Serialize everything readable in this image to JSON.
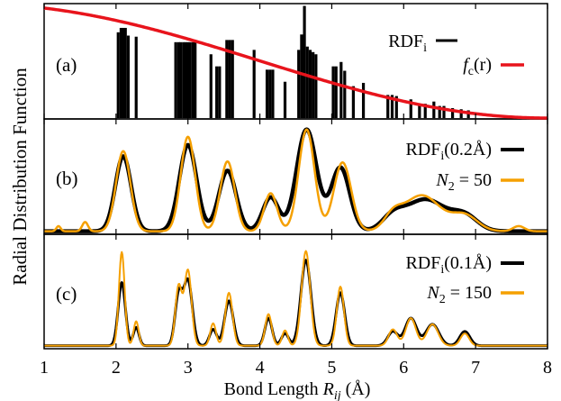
{
  "figure": {
    "ylabel": "Radial Distribution Function",
    "xlabel_main": "Bond Length ",
    "xlabel_var": "R",
    "xlabel_sub": "ij",
    "xlabel_unit": " (Å)",
    "xticks": [
      "1",
      "2",
      "3",
      "4",
      "5",
      "6",
      "7",
      "8"
    ]
  },
  "colors": {
    "black": "#000000",
    "red": "#e8141c",
    "orange": "#f5a000"
  },
  "chart_data": [
    {
      "type": "bar",
      "panel_label": "(a)",
      "xlim": [
        1,
        8
      ],
      "legend_position": "top-right",
      "legend": [
        {
          "main": "RDF",
          "sub": "i",
          "tail": "",
          "color": "#000000"
        },
        {
          "main": "f",
          "sub": "c",
          "tail": "(r)",
          "color": "#e8141c",
          "italic_main": true
        }
      ],
      "sticks": [
        [
          2.03,
          0.78
        ],
        [
          2.07,
          0.82
        ],
        [
          2.1,
          0.82
        ],
        [
          2.13,
          0.82
        ],
        [
          2.17,
          0.75
        ],
        [
          2.28,
          0.74
        ],
        [
          2.83,
          0.69
        ],
        [
          2.87,
          0.69
        ],
        [
          2.9,
          0.69
        ],
        [
          2.94,
          0.69
        ],
        [
          2.97,
          0.69
        ],
        [
          3.0,
          0.69
        ],
        [
          3.03,
          0.69
        ],
        [
          3.07,
          0.69
        ],
        [
          3.1,
          0.69
        ],
        [
          3.32,
          0.58
        ],
        [
          3.4,
          0.47
        ],
        [
          3.44,
          0.47
        ],
        [
          3.54,
          0.71
        ],
        [
          3.58,
          0.71
        ],
        [
          3.62,
          0.71
        ],
        [
          3.92,
          0.62
        ],
        [
          4.1,
          0.44
        ],
        [
          4.14,
          0.44
        ],
        [
          4.18,
          0.44
        ],
        [
          4.35,
          0.33
        ],
        [
          4.54,
          0.62
        ],
        [
          4.58,
          0.76
        ],
        [
          4.62,
          1.02
        ],
        [
          4.66,
          0.65
        ],
        [
          4.7,
          0.62
        ],
        [
          4.74,
          0.6
        ],
        [
          4.78,
          0.58
        ],
        [
          5.02,
          0.47
        ],
        [
          5.06,
          0.47
        ],
        [
          5.13,
          0.51
        ],
        [
          5.18,
          0.43
        ],
        [
          5.3,
          0.29
        ],
        [
          5.44,
          0.32
        ],
        [
          5.78,
          0.21
        ],
        [
          5.84,
          0.21
        ],
        [
          5.9,
          0.2
        ],
        [
          6.1,
          0.17
        ],
        [
          6.22,
          0.13
        ],
        [
          6.3,
          0.13
        ],
        [
          6.42,
          0.15
        ],
        [
          6.5,
          0.11
        ],
        [
          6.56,
          0.11
        ],
        [
          6.68,
          0.09
        ],
        [
          6.8,
          0.08
        ],
        [
          6.9,
          0.07
        ]
      ],
      "fc_curve": {
        "rc": 8,
        "start": 1
      }
    },
    {
      "type": "line",
      "panel_label": "(b)",
      "xlim": [
        1,
        8
      ],
      "legend_position": "top-right",
      "legend": [
        {
          "main": "RDF",
          "sub": "i",
          "tail": "(0.2Å)",
          "color": "#000000"
        },
        {
          "main": "N",
          "sub": "2",
          "tail": " = 50",
          "color": "#f5a000",
          "italic_main": true
        }
      ],
      "series": [
        {
          "name": "RDFi(0.2Å)",
          "color": "#000000",
          "width": 4.5,
          "peaks": [
            [
              2.1,
              0.73,
              0.11
            ],
            [
              3.0,
              0.84,
              0.12
            ],
            [
              3.55,
              0.59,
              0.12
            ],
            [
              4.15,
              0.33,
              0.11
            ],
            [
              4.65,
              0.99,
              0.14
            ],
            [
              5.12,
              0.62,
              0.13
            ],
            [
              5.85,
              0.12,
              0.15
            ],
            [
              6.3,
              0.31,
              0.28
            ],
            [
              6.85,
              0.14,
              0.18
            ]
          ]
        },
        {
          "name": "N2 = 50",
          "color": "#f5a000",
          "width": 2.5,
          "peaks": [
            [
              1.2,
              0.05,
              0.03
            ],
            [
              1.57,
              0.09,
              0.04
            ],
            [
              2.1,
              0.78,
              0.1
            ],
            [
              3.0,
              0.92,
              0.1
            ],
            [
              3.55,
              0.68,
              0.1
            ],
            [
              4.15,
              0.37,
              0.09
            ],
            [
              4.65,
              0.99,
              0.11
            ],
            [
              5.15,
              0.67,
              0.12
            ],
            [
              5.85,
              0.12,
              0.12
            ],
            [
              6.25,
              0.35,
              0.26
            ],
            [
              6.85,
              0.15,
              0.18
            ],
            [
              7.6,
              0.05,
              0.08
            ]
          ]
        }
      ]
    },
    {
      "type": "line",
      "panel_label": "(c)",
      "xlim": [
        1,
        8
      ],
      "legend_position": "top-right",
      "legend": [
        {
          "main": "RDF",
          "sub": "i",
          "tail": "(0.1Å)",
          "color": "#000000"
        },
        {
          "main": "N",
          "sub": "2",
          "tail": " = 150",
          "color": "#f5a000",
          "italic_main": true
        }
      ],
      "series": [
        {
          "name": "RDFi(0.1Å)",
          "color": "#000000",
          "width": 3.0,
          "peaks": [
            [
              2.08,
              0.62,
              0.05
            ],
            [
              2.28,
              0.18,
              0.04
            ],
            [
              2.87,
              0.49,
              0.05
            ],
            [
              3.0,
              0.64,
              0.06
            ],
            [
              3.35,
              0.16,
              0.05
            ],
            [
              3.57,
              0.44,
              0.06
            ],
            [
              4.12,
              0.27,
              0.05
            ],
            [
              4.35,
              0.12,
              0.05
            ],
            [
              4.64,
              0.84,
              0.07
            ],
            [
              5.12,
              0.52,
              0.06
            ],
            [
              5.85,
              0.14,
              0.07
            ],
            [
              6.1,
              0.27,
              0.08
            ],
            [
              6.4,
              0.21,
              0.09
            ],
            [
              6.85,
              0.14,
              0.07
            ]
          ]
        },
        {
          "name": "N2 = 150",
          "color": "#f5a000",
          "width": 2.0,
          "peaks": [
            [
              2.08,
              0.92,
              0.04
            ],
            [
              2.28,
              0.24,
              0.035
            ],
            [
              2.87,
              0.58,
              0.045
            ],
            [
              3.0,
              0.74,
              0.05
            ],
            [
              3.35,
              0.22,
              0.04
            ],
            [
              3.57,
              0.52,
              0.05
            ],
            [
              4.12,
              0.31,
              0.045
            ],
            [
              4.35,
              0.15,
              0.04
            ],
            [
              4.64,
              0.93,
              0.06
            ],
            [
              5.12,
              0.58,
              0.05
            ],
            [
              5.85,
              0.16,
              0.06
            ],
            [
              6.1,
              0.27,
              0.07
            ],
            [
              6.4,
              0.21,
              0.08
            ],
            [
              6.85,
              0.12,
              0.06
            ]
          ]
        }
      ]
    }
  ]
}
